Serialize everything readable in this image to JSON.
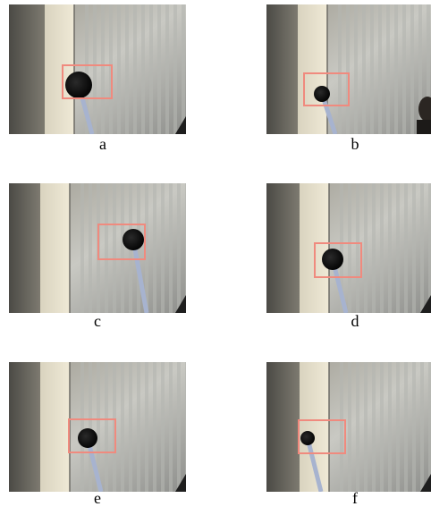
{
  "figure": {
    "panels": [
      {
        "label": "a"
      },
      {
        "label": "b"
      },
      {
        "label": "c"
      },
      {
        "label": "d"
      },
      {
        "label": "e"
      },
      {
        "label": "f"
      }
    ]
  }
}
